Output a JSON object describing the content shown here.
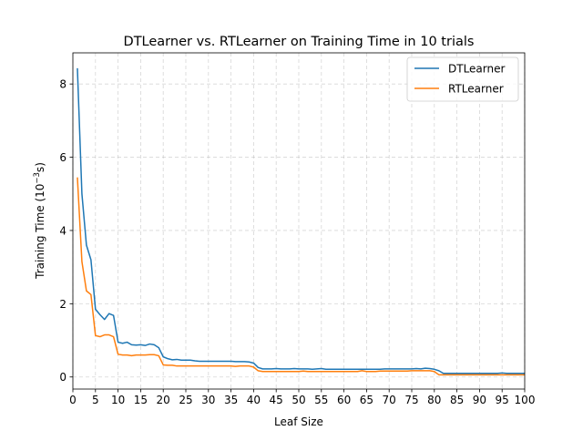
{
  "chart_data": {
    "type": "line",
    "title": "DTLearner vs. RTLearner on Training Time in 10 trials",
    "xlabel": "Leaf Size",
    "ylabel_main": "Training Time (10",
    "ylabel_exp": "−3",
    "ylabel_tail": "s)",
    "xlim": [
      0,
      100
    ],
    "ylim": [
      -0.33,
      8.85
    ],
    "xticks": [
      0,
      5,
      10,
      15,
      20,
      25,
      30,
      35,
      40,
      45,
      50,
      55,
      60,
      65,
      70,
      75,
      80,
      85,
      90,
      95,
      100
    ],
    "xtick_labels": [
      "0",
      "5",
      "10",
      "15",
      "20",
      "25",
      "30",
      "35",
      "40",
      "45",
      "50",
      "55",
      "60",
      "65",
      "70",
      "75",
      "80",
      "85",
      "90",
      "95",
      "100"
    ],
    "yticks": [
      0,
      2,
      4,
      6,
      8
    ],
    "ytick_labels": [
      "0",
      "2",
      "4",
      "6",
      "8"
    ],
    "grid": true,
    "legend_position": "top-right",
    "series": [
      {
        "name": "DTLearner",
        "color": "#1f77b4",
        "x": [
          1,
          2,
          3,
          4,
          5,
          6,
          7,
          8,
          9,
          10,
          11,
          12,
          13,
          14,
          15,
          16,
          17,
          18,
          19,
          20,
          21,
          22,
          23,
          24,
          25,
          26,
          27,
          28,
          29,
          30,
          31,
          32,
          33,
          34,
          35,
          36,
          37,
          38,
          39,
          40,
          41,
          42,
          43,
          44,
          45,
          46,
          47,
          48,
          49,
          50,
          51,
          52,
          53,
          54,
          55,
          56,
          57,
          58,
          59,
          60,
          61,
          62,
          63,
          64,
          65,
          66,
          67,
          68,
          69,
          70,
          71,
          72,
          73,
          74,
          75,
          76,
          77,
          78,
          79,
          80,
          81,
          82,
          83,
          84,
          85,
          86,
          87,
          88,
          89,
          90,
          91,
          92,
          93,
          94,
          95,
          96,
          97,
          98,
          99,
          100
        ],
        "y": [
          8.43,
          5.0,
          3.6,
          3.2,
          1.85,
          1.7,
          1.57,
          1.73,
          1.68,
          0.95,
          0.92,
          0.95,
          0.88,
          0.87,
          0.88,
          0.86,
          0.9,
          0.88,
          0.8,
          0.55,
          0.5,
          0.47,
          0.48,
          0.46,
          0.46,
          0.46,
          0.44,
          0.43,
          0.43,
          0.43,
          0.43,
          0.43,
          0.43,
          0.43,
          0.43,
          0.42,
          0.42,
          0.42,
          0.41,
          0.38,
          0.26,
          0.22,
          0.22,
          0.22,
          0.23,
          0.22,
          0.22,
          0.22,
          0.23,
          0.22,
          0.22,
          0.22,
          0.21,
          0.22,
          0.23,
          0.21,
          0.21,
          0.21,
          0.21,
          0.21,
          0.21,
          0.21,
          0.21,
          0.21,
          0.21,
          0.21,
          0.21,
          0.21,
          0.22,
          0.22,
          0.22,
          0.22,
          0.22,
          0.22,
          0.22,
          0.23,
          0.22,
          0.24,
          0.23,
          0.21,
          0.17,
          0.1,
          0.1,
          0.1,
          0.1,
          0.1,
          0.1,
          0.1,
          0.1,
          0.1,
          0.1,
          0.1,
          0.1,
          0.1,
          0.11,
          0.1,
          0.1,
          0.1,
          0.1,
          0.1
        ]
      },
      {
        "name": "RTLearner",
        "color": "#ff7f0e",
        "x": [
          1,
          2,
          3,
          4,
          5,
          6,
          7,
          8,
          9,
          10,
          11,
          12,
          13,
          14,
          15,
          16,
          17,
          18,
          19,
          20,
          21,
          22,
          23,
          24,
          25,
          26,
          27,
          28,
          29,
          30,
          31,
          32,
          33,
          34,
          35,
          36,
          37,
          38,
          39,
          40,
          41,
          42,
          43,
          44,
          45,
          46,
          47,
          48,
          49,
          50,
          51,
          52,
          53,
          54,
          55,
          56,
          57,
          58,
          59,
          60,
          61,
          62,
          63,
          64,
          65,
          66,
          67,
          68,
          69,
          70,
          71,
          72,
          73,
          74,
          75,
          76,
          77,
          78,
          79,
          80,
          81,
          82,
          83,
          84,
          85,
          86,
          87,
          88,
          89,
          90,
          91,
          92,
          93,
          94,
          95,
          96,
          97,
          98,
          99,
          100
        ],
        "y": [
          5.45,
          3.15,
          2.35,
          2.25,
          1.13,
          1.1,
          1.15,
          1.15,
          1.1,
          0.62,
          0.6,
          0.6,
          0.58,
          0.6,
          0.6,
          0.6,
          0.61,
          0.61,
          0.58,
          0.33,
          0.32,
          0.32,
          0.3,
          0.3,
          0.3,
          0.3,
          0.3,
          0.3,
          0.3,
          0.3,
          0.3,
          0.3,
          0.3,
          0.3,
          0.3,
          0.29,
          0.3,
          0.3,
          0.3,
          0.27,
          0.17,
          0.15,
          0.15,
          0.15,
          0.15,
          0.15,
          0.15,
          0.15,
          0.15,
          0.15,
          0.16,
          0.15,
          0.15,
          0.15,
          0.15,
          0.15,
          0.15,
          0.15,
          0.15,
          0.15,
          0.15,
          0.15,
          0.15,
          0.17,
          0.15,
          0.15,
          0.15,
          0.16,
          0.16,
          0.16,
          0.16,
          0.16,
          0.16,
          0.16,
          0.17,
          0.17,
          0.17,
          0.17,
          0.17,
          0.15,
          0.06,
          0.06,
          0.06,
          0.06,
          0.06,
          0.06,
          0.06,
          0.06,
          0.06,
          0.06,
          0.06,
          0.06,
          0.06,
          0.06,
          0.06,
          0.06,
          0.06,
          0.06,
          0.06,
          0.06
        ]
      }
    ]
  }
}
